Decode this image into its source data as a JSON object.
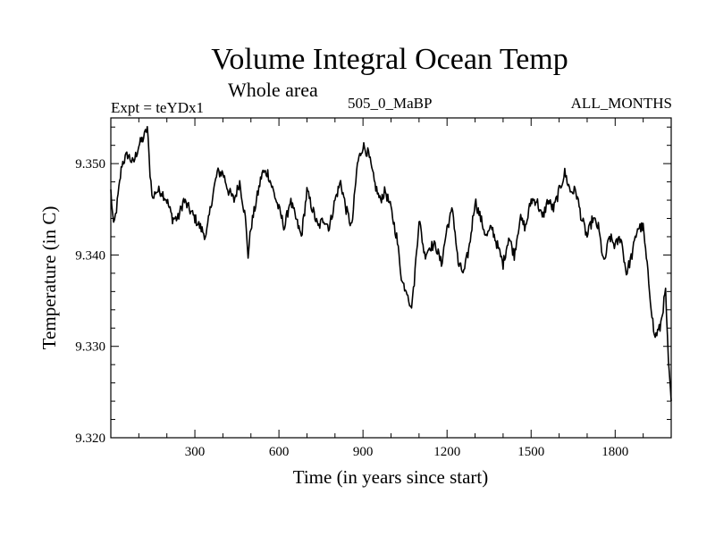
{
  "chart_data": {
    "type": "line",
    "title": "Volume Integral Ocean Temp",
    "subtitle": "Whole area",
    "expt_label": "Expt = teYDx1",
    "case_label": "505_0_MaBP",
    "months_label": "ALL_MONTHS",
    "xlabel": "Time (in years since start)",
    "ylabel": "Temperature (in C)",
    "xlim": [
      0,
      2000
    ],
    "ylim": [
      9.32,
      9.355
    ],
    "x_ticks": [
      300,
      600,
      900,
      1200,
      1500,
      1800
    ],
    "x_tick_labels": [
      "300",
      "600",
      "900",
      "1200",
      "1500",
      "1800"
    ],
    "y_ticks": [
      9.32,
      9.33,
      9.34,
      9.35
    ],
    "y_tick_labels": [
      "9.320",
      "9.330",
      "9.340",
      "9.350"
    ],
    "series": [
      {
        "name": "Volume Integral Ocean Temp",
        "x": [
          0,
          10,
          20,
          40,
          60,
          80,
          100,
          120,
          130,
          140,
          150,
          160,
          180,
          200,
          220,
          240,
          260,
          280,
          300,
          320,
          340,
          360,
          380,
          400,
          420,
          440,
          460,
          480,
          490,
          500,
          520,
          540,
          560,
          580,
          600,
          620,
          640,
          660,
          680,
          700,
          720,
          740,
          760,
          780,
          800,
          820,
          840,
          860,
          880,
          900,
          920,
          940,
          960,
          980,
          1000,
          1020,
          1040,
          1060,
          1070,
          1080,
          1100,
          1120,
          1140,
          1160,
          1180,
          1200,
          1220,
          1240,
          1260,
          1280,
          1300,
          1320,
          1340,
          1360,
          1380,
          1400,
          1420,
          1440,
          1460,
          1480,
          1500,
          1520,
          1540,
          1560,
          1580,
          1600,
          1620,
          1640,
          1660,
          1680,
          1700,
          1720,
          1740,
          1760,
          1780,
          1800,
          1820,
          1840,
          1860,
          1880,
          1900,
          1920,
          1940,
          1960,
          1980,
          1990,
          2000
        ],
        "values": [
          9.347,
          9.343,
          9.345,
          9.35,
          9.351,
          9.35,
          9.352,
          9.353,
          9.354,
          9.349,
          9.346,
          9.347,
          9.347,
          9.346,
          9.344,
          9.344,
          9.346,
          9.345,
          9.344,
          9.343,
          9.342,
          9.346,
          9.349,
          9.349,
          9.347,
          9.346,
          9.348,
          9.344,
          9.34,
          9.343,
          9.346,
          9.349,
          9.349,
          9.347,
          9.345,
          9.343,
          9.346,
          9.344,
          9.342,
          9.347,
          9.345,
          9.343,
          9.344,
          9.343,
          9.346,
          9.348,
          9.345,
          9.343,
          9.35,
          9.352,
          9.351,
          9.348,
          9.346,
          9.347,
          9.345,
          9.342,
          9.337,
          9.336,
          9.334,
          9.336,
          9.344,
          9.34,
          9.341,
          9.341,
          9.339,
          9.343,
          9.345,
          9.339,
          9.338,
          9.341,
          9.346,
          9.344,
          9.342,
          9.343,
          9.341,
          9.339,
          9.342,
          9.34,
          9.344,
          9.343,
          9.346,
          9.346,
          9.344,
          9.346,
          9.345,
          9.347,
          9.349,
          9.347,
          9.347,
          9.344,
          9.342,
          9.344,
          9.343,
          9.339,
          9.342,
          9.341,
          9.342,
          9.338,
          9.34,
          9.343,
          9.343,
          9.337,
          9.331,
          9.332,
          9.336,
          9.328,
          9.324
        ]
      }
    ]
  }
}
